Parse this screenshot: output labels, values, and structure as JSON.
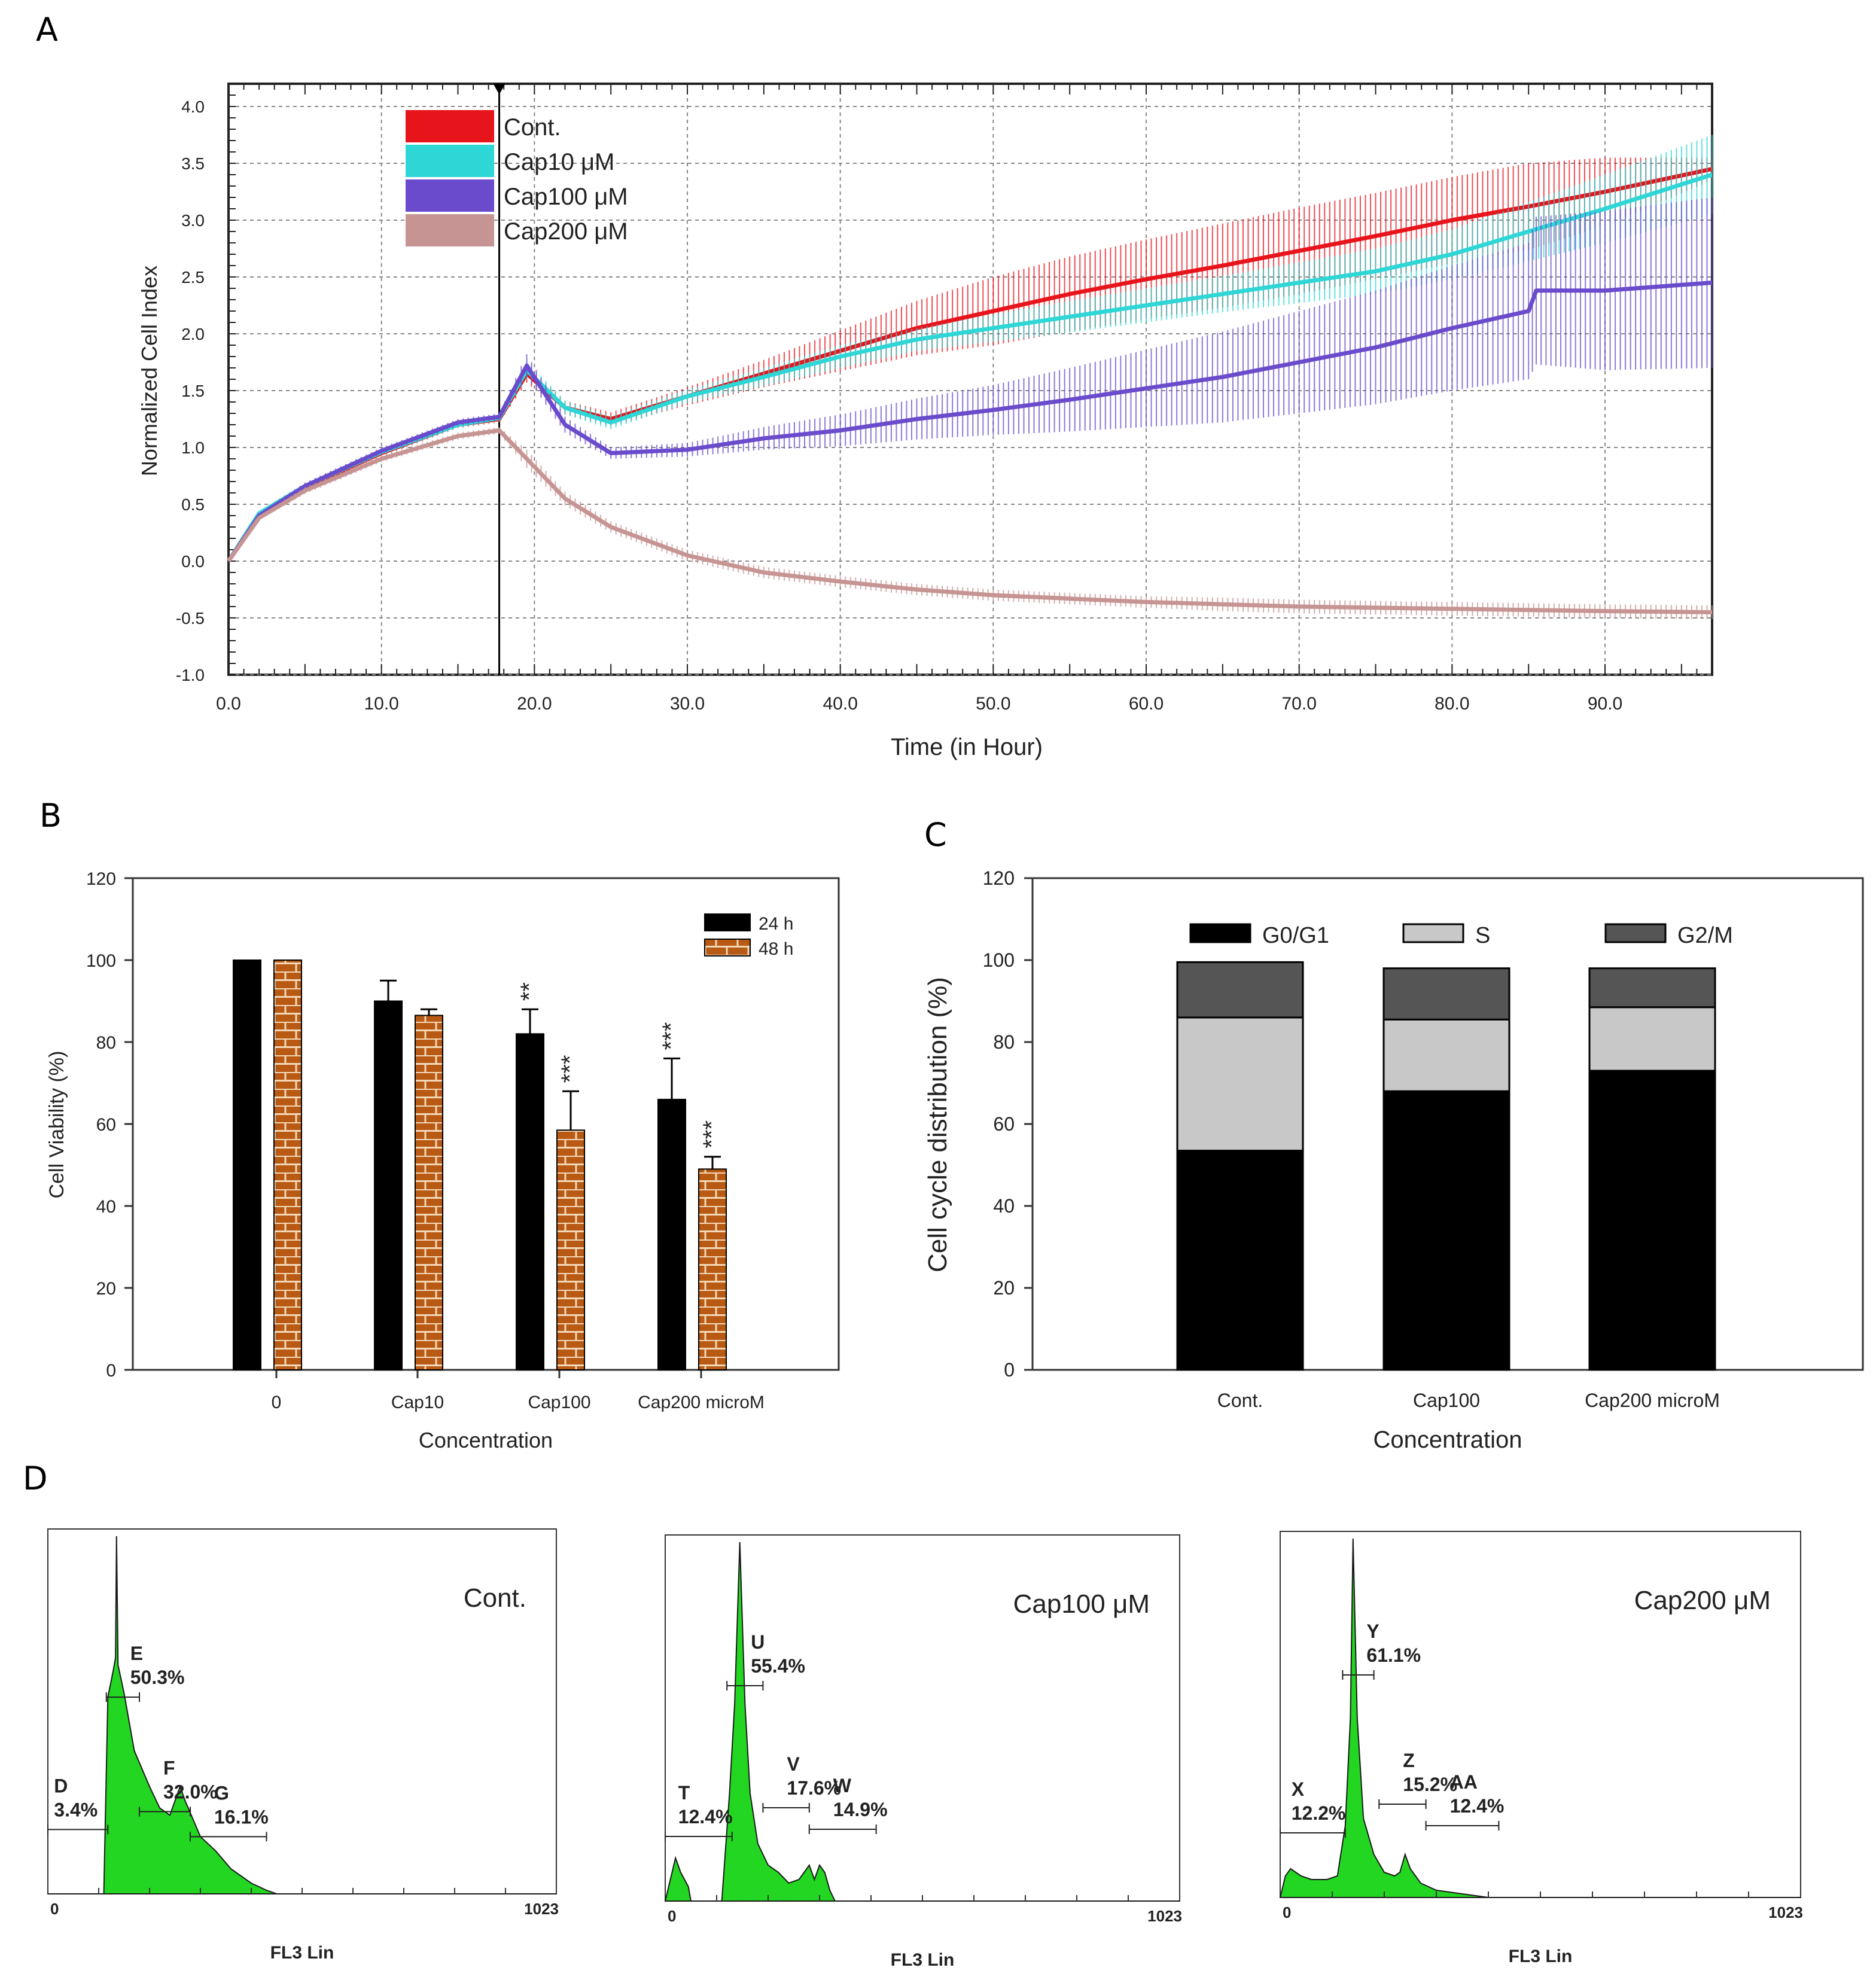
{
  "panel_labels": [
    "A",
    "B",
    "C",
    "D"
  ],
  "chart_data": [
    {
      "id": "A",
      "type": "line",
      "title": "",
      "xlabel": "Time (in Hour)",
      "ylabel": "Normalized Cell Index",
      "xlim": [
        0,
        97
      ],
      "ylim": [
        -1.0,
        4.2
      ],
      "x_ticks": [
        0,
        10,
        20,
        30,
        40,
        50,
        60,
        70,
        80,
        90
      ],
      "x_tick_labels": [
        "0.0",
        "10.0",
        "20.0",
        "30.0",
        "40.0",
        "50.0",
        "60.0",
        "70.0",
        "80.0",
        "90.0"
      ],
      "y_ticks": [
        -1.0,
        -0.5,
        0.0,
        0.5,
        1.0,
        1.5,
        2.0,
        2.5,
        3.0,
        3.5,
        4.0
      ],
      "y_tick_labels": [
        "-1.0",
        "-0.5",
        "0.0",
        "0.5",
        "1.0",
        "1.5",
        "2.0",
        "2.5",
        "3.0",
        "3.5",
        "4.0"
      ],
      "grid": true,
      "legend_position": "top-left",
      "treatment_marker_x": 17.7,
      "series": [
        {
          "name": "Cont.",
          "color": "#e8141c",
          "x": [
            0,
            2,
            5,
            10,
            15,
            17.7,
            19.5,
            22,
            25,
            30,
            35,
            40,
            45,
            50,
            55,
            60,
            65,
            70,
            75,
            80,
            85,
            90,
            97
          ],
          "y": [
            0.0,
            0.4,
            0.65,
            0.95,
            1.2,
            1.25,
            1.65,
            1.35,
            1.25,
            1.45,
            1.65,
            1.85,
            2.05,
            2.2,
            2.35,
            2.48,
            2.6,
            2.73,
            2.86,
            3.0,
            3.12,
            3.25,
            3.45
          ],
          "err": [
            0,
            0.02,
            0.03,
            0.03,
            0.03,
            0.03,
            0.08,
            0.06,
            0.06,
            0.08,
            0.12,
            0.18,
            0.24,
            0.3,
            0.33,
            0.35,
            0.37,
            0.38,
            0.38,
            0.38,
            0.38,
            0.3,
            0.1
          ]
        },
        {
          "name": "Cap10 μM",
          "color": "#2fd6d6",
          "x": [
            0,
            2,
            5,
            10,
            15,
            17.7,
            19.5,
            22,
            25,
            30,
            35,
            40,
            45,
            50,
            55,
            60,
            65,
            70,
            75,
            80,
            85,
            90,
            97
          ],
          "y": [
            0.0,
            0.42,
            0.66,
            0.96,
            1.2,
            1.26,
            1.68,
            1.35,
            1.22,
            1.45,
            1.62,
            1.8,
            1.95,
            2.05,
            2.15,
            2.25,
            2.35,
            2.45,
            2.55,
            2.7,
            2.9,
            3.1,
            3.4
          ],
          "err": [
            0,
            0.02,
            0.03,
            0.03,
            0.03,
            0.03,
            0.08,
            0.06,
            0.06,
            0.06,
            0.08,
            0.1,
            0.1,
            0.12,
            0.14,
            0.15,
            0.16,
            0.18,
            0.2,
            0.22,
            0.26,
            0.3,
            0.35
          ]
        },
        {
          "name": "Cap100 μM",
          "color": "#6a4bcc",
          "x": [
            0,
            2,
            5,
            10,
            15,
            17.7,
            19.5,
            22,
            25,
            30,
            35,
            40,
            45,
            50,
            55,
            60,
            65,
            70,
            75,
            80,
            85,
            85.5,
            90,
            97
          ],
          "y": [
            0.0,
            0.4,
            0.66,
            0.97,
            1.22,
            1.27,
            1.72,
            1.2,
            0.95,
            0.98,
            1.08,
            1.15,
            1.25,
            1.33,
            1.42,
            1.52,
            1.62,
            1.75,
            1.88,
            2.05,
            2.2,
            2.38,
            2.38,
            2.45
          ],
          "err": [
            0,
            0.02,
            0.03,
            0.03,
            0.03,
            0.03,
            0.1,
            0.07,
            0.05,
            0.06,
            0.1,
            0.14,
            0.18,
            0.22,
            0.28,
            0.34,
            0.4,
            0.45,
            0.5,
            0.55,
            0.6,
            0.65,
            0.7,
            0.75
          ]
        },
        {
          "name": "Cap200 μM",
          "color": "#c79494",
          "x": [
            0,
            2,
            5,
            10,
            15,
            17.7,
            19.5,
            22,
            25,
            30,
            35,
            40,
            45,
            50,
            55,
            60,
            65,
            70,
            75,
            80,
            85,
            90,
            97
          ],
          "y": [
            0.0,
            0.38,
            0.62,
            0.9,
            1.1,
            1.15,
            0.9,
            0.55,
            0.3,
            0.05,
            -0.1,
            -0.18,
            -0.25,
            -0.3,
            -0.33,
            -0.36,
            -0.38,
            -0.4,
            -0.41,
            -0.42,
            -0.43,
            -0.44,
            -0.45
          ],
          "err": [
            0,
            0.02,
            0.03,
            0.03,
            0.03,
            0.03,
            0.08,
            0.06,
            0.05,
            0.05,
            0.05,
            0.05,
            0.05,
            0.05,
            0.05,
            0.05,
            0.06,
            0.06,
            0.06,
            0.06,
            0.06,
            0.06,
            0.06
          ]
        }
      ]
    },
    {
      "id": "B",
      "type": "bar",
      "title": "",
      "xlabel": "Concentration",
      "ylabel": "Cell Viability (%)",
      "ylim": [
        0,
        120
      ],
      "y_ticks": [
        0,
        20,
        40,
        60,
        80,
        100,
        120
      ],
      "categories": [
        "0",
        "Cap10",
        "Cap100",
        "Cap200 microM"
      ],
      "legend_position": "top-right",
      "series": [
        {
          "name": "24 h",
          "color": "#000000",
          "pattern": "solid",
          "values": [
            100,
            90,
            82,
            66
          ],
          "err": [
            0,
            5,
            6,
            10
          ],
          "annotations": [
            "",
            "",
            "**",
            "***"
          ]
        },
        {
          "name": "48 h",
          "color": "#b85a14",
          "pattern": "brick",
          "values": [
            100,
            86.5,
            58.5,
            49
          ],
          "err": [
            0,
            1.5,
            9.5,
            3
          ],
          "annotations": [
            "",
            "",
            "***",
            "***"
          ]
        }
      ]
    },
    {
      "id": "C",
      "type": "bar",
      "stacked": true,
      "title": "",
      "xlabel": "Concentration",
      "ylabel": "Cell cycle distribution (%)",
      "ylim": [
        0,
        120
      ],
      "y_ticks": [
        0,
        20,
        40,
        60,
        80,
        100,
        120
      ],
      "categories": [
        "Cont.",
        "Cap100",
        "Cap200 microM"
      ],
      "legend_position": "top",
      "series": [
        {
          "name": "G0/G1",
          "color": "#000000",
          "values": [
            53.5,
            68,
            73
          ]
        },
        {
          "name": "S",
          "color": "#c8c8c8",
          "values": [
            32.5,
            17.5,
            15.5
          ]
        },
        {
          "name": "G2/M",
          "color": "#555555",
          "values": [
            13.5,
            12.5,
            9.5
          ]
        }
      ]
    },
    {
      "id": "D",
      "type": "area",
      "title": "",
      "xlabel": "FL3 Lin",
      "x_range_labels": [
        "0",
        "1023"
      ],
      "histograms": [
        {
          "label": "Cont.",
          "color": "#22d622",
          "peak_x": 0.135,
          "shape": [
            [
              0.0,
              0.0
            ],
            [
              0.06,
              0.0
            ],
            [
              0.11,
              0.0
            ],
            [
              0.118,
              0.55
            ],
            [
              0.128,
              0.62
            ],
            [
              0.133,
              0.66
            ],
            [
              0.135,
              1.0
            ],
            [
              0.138,
              0.64
            ],
            [
              0.15,
              0.56
            ],
            [
              0.17,
              0.4
            ],
            [
              0.2,
              0.3
            ],
            [
              0.22,
              0.24
            ],
            [
              0.24,
              0.22
            ],
            [
              0.26,
              0.3
            ],
            [
              0.27,
              0.26
            ],
            [
              0.3,
              0.16
            ],
            [
              0.33,
              0.12
            ],
            [
              0.36,
              0.07
            ],
            [
              0.4,
              0.03
            ],
            [
              0.43,
              0.01
            ],
            [
              0.45,
              0.0
            ],
            [
              1.0,
              0.0
            ]
          ],
          "gates": [
            {
              "letter": "D",
              "percent": "3.4%",
              "x1": 0.0,
              "x2": 0.118,
              "y": 0.18
            },
            {
              "letter": "E",
              "percent": "50.3%",
              "x1": 0.115,
              "x2": 0.18,
              "y": 0.55
            },
            {
              "letter": "F",
              "percent": "32.0%",
              "x1": 0.18,
              "x2": 0.28,
              "y": 0.23
            },
            {
              "letter": "G",
              "percent": "16.1%",
              "x1": 0.28,
              "x2": 0.43,
              "y": 0.16
            }
          ]
        },
        {
          "label": "Cap100 μM",
          "color": "#22d622",
          "peak_x": 0.145,
          "shape": [
            [
              0.0,
              0.0
            ],
            [
              0.02,
              0.12
            ],
            [
              0.03,
              0.08
            ],
            [
              0.045,
              0.04
            ],
            [
              0.05,
              0.0
            ],
            [
              0.11,
              0.0
            ],
            [
              0.125,
              0.3
            ],
            [
              0.135,
              0.55
            ],
            [
              0.145,
              1.0
            ],
            [
              0.155,
              0.55
            ],
            [
              0.165,
              0.3
            ],
            [
              0.18,
              0.16
            ],
            [
              0.2,
              0.1
            ],
            [
              0.22,
              0.08
            ],
            [
              0.24,
              0.05
            ],
            [
              0.26,
              0.06
            ],
            [
              0.28,
              0.1
            ],
            [
              0.29,
              0.06
            ],
            [
              0.3,
              0.1
            ],
            [
              0.31,
              0.08
            ],
            [
              0.32,
              0.03
            ],
            [
              0.33,
              0.0
            ],
            [
              1.0,
              0.0
            ]
          ],
          "gates": [
            {
              "letter": "T",
              "percent": "12.4%",
              "x1": 0.0,
              "x2": 0.13,
              "y": 0.18
            },
            {
              "letter": "U",
              "percent": "55.4%",
              "x1": 0.12,
              "x2": 0.19,
              "y": 0.6
            },
            {
              "letter": "V",
              "percent": "17.6%",
              "x1": 0.19,
              "x2": 0.28,
              "y": 0.26
            },
            {
              "letter": "W",
              "percent": "14.9%",
              "x1": 0.28,
              "x2": 0.41,
              "y": 0.2
            }
          ]
        },
        {
          "label": "Cap200 μM",
          "color": "#22d622",
          "peak_x": 0.14,
          "shape": [
            [
              0.0,
              0.0
            ],
            [
              0.01,
              0.06
            ],
            [
              0.02,
              0.08
            ],
            [
              0.04,
              0.06
            ],
            [
              0.06,
              0.05
            ],
            [
              0.09,
              0.05
            ],
            [
              0.11,
              0.06
            ],
            [
              0.125,
              0.2
            ],
            [
              0.135,
              0.5
            ],
            [
              0.14,
              1.0
            ],
            [
              0.148,
              0.5
            ],
            [
              0.16,
              0.22
            ],
            [
              0.18,
              0.12
            ],
            [
              0.2,
              0.07
            ],
            [
              0.22,
              0.06
            ],
            [
              0.23,
              0.07
            ],
            [
              0.24,
              0.12
            ],
            [
              0.25,
              0.08
            ],
            [
              0.27,
              0.04
            ],
            [
              0.3,
              0.02
            ],
            [
              0.35,
              0.01
            ],
            [
              0.4,
              0.0
            ],
            [
              1.0,
              0.0
            ]
          ],
          "gates": [
            {
              "letter": "X",
              "percent": "12.2%",
              "x1": 0.0,
              "x2": 0.125,
              "y": 0.18
            },
            {
              "letter": "Y",
              "percent": "61.1%",
              "x1": 0.12,
              "x2": 0.18,
              "y": 0.62
            },
            {
              "letter": "Z",
              "percent": "15.2%",
              "x1": 0.19,
              "x2": 0.28,
              "y": 0.26
            },
            {
              "letter": "AA",
              "percent": "12.4%",
              "x1": 0.28,
              "x2": 0.42,
              "y": 0.2
            }
          ]
        }
      ]
    }
  ]
}
